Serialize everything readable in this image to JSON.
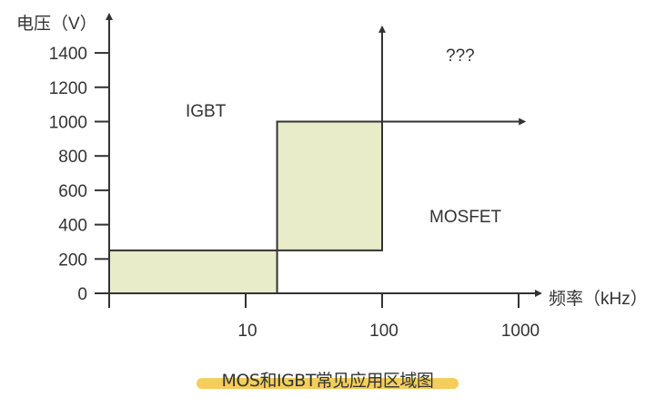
{
  "chart_data": {
    "type": "diagram",
    "y_axis": {
      "label": "电压（V）",
      "ticks": [
        0,
        200,
        400,
        600,
        800,
        1000,
        1200,
        1400
      ],
      "range": [
        0,
        1500
      ]
    },
    "x_axis": {
      "label": "频率（kHz）",
      "scale": "log",
      "ticks": [
        10,
        100,
        1000
      ],
      "range": [
        1,
        1000
      ]
    },
    "regions": [
      {
        "name": "IGBT",
        "label": "IGBT"
      },
      {
        "name": "MOSFET",
        "label": "MOSFET"
      },
      {
        "name": "unknown",
        "label": "???"
      }
    ],
    "overlap_boxes": [
      {
        "x": [
          1,
          17
        ],
        "y": [
          0,
          250
        ]
      },
      {
        "x": [
          17,
          100
        ],
        "y": [
          250,
          1000
        ]
      }
    ],
    "boundary_lines": [
      {
        "from": [
          100,
          1000
        ],
        "to": [
          100,
          1550
        ],
        "arrow": true
      },
      {
        "from": [
          100,
          1000
        ],
        "to": [
          1100,
          1000
        ],
        "arrow": true
      }
    ],
    "fill_color": "#e8ecc8",
    "line_color": "#333333"
  },
  "caption": {
    "text": "MOS和IGBT常见应用区域图",
    "highlight_color": "#f5cd5c"
  }
}
